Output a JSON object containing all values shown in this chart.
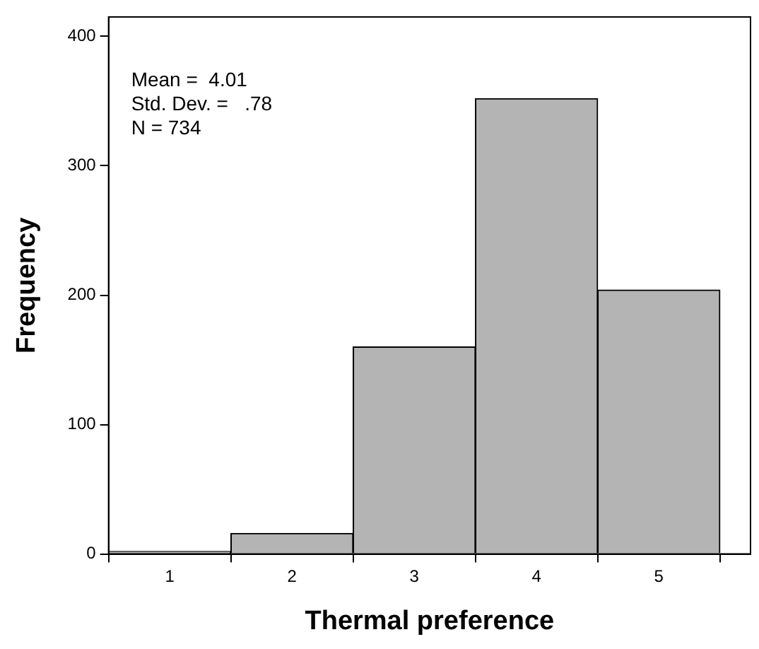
{
  "chart_data": {
    "type": "histogram",
    "xlabel": "Thermal preference",
    "ylabel": "Frequency",
    "bins": [
      0.5,
      1.5,
      2.5,
      3.5,
      4.5,
      5.5
    ],
    "values": [
      2,
      16,
      160,
      352,
      204
    ],
    "color": "#b4b4b4",
    "xlim": [
      0.5,
      5.75
    ],
    "xticks": [
      1,
      2,
      3,
      4,
      5
    ],
    "ylim": [
      0,
      415
    ],
    "yticks": [
      0,
      100,
      200,
      300,
      400
    ],
    "grid": false,
    "legend": false,
    "annotations": [
      "Mean =  4.01",
      "Std. Dev. =   .78",
      "N = 734"
    ]
  }
}
